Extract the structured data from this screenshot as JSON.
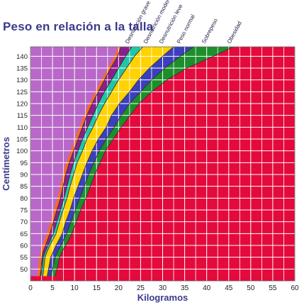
{
  "chart_data": {
    "type": "area",
    "title": "Peso en relación a la talla",
    "xlabel": "Kilogramos",
    "ylabel": "Centímetros",
    "xlim": [
      0,
      60
    ],
    "ylim": [
      45,
      144
    ],
    "xticks": [
      0,
      5,
      10,
      15,
      20,
      25,
      30,
      35,
      40,
      45,
      50,
      55,
      60
    ],
    "yticks": [
      50,
      55,
      60,
      65,
      70,
      75,
      80,
      85,
      90,
      95,
      100,
      105,
      110,
      115,
      120,
      125,
      130,
      135,
      140
    ],
    "grid": true,
    "heights": [
      47,
      50,
      55,
      57.5,
      60,
      65,
      70,
      75,
      80,
      85,
      90,
      95,
      100,
      105,
      110,
      115,
      120,
      125,
      130,
      135,
      140,
      144
    ],
    "series": [
      {
        "name": "Desnutrición grave",
        "color": "#ff6a1a",
        "upper_weight": [
          2.2,
          2.4,
          2.6,
          2.9,
          3.4,
          4.4,
          5.2,
          6.0,
          6.8,
          7.4,
          8.0,
          8.8,
          9.8,
          10.8,
          11.8,
          12.8,
          14.0,
          15.4,
          16.8,
          18.2,
          19.8,
          20.5
        ]
      },
      {
        "name": "Desnutrición moderada",
        "color": "#8a1f8c",
        "upper_weight": [
          2.4,
          2.6,
          2.9,
          3.4,
          4.0,
          5.2,
          6.0,
          6.8,
          7.6,
          8.3,
          9.0,
          9.8,
          10.8,
          11.8,
          13.0,
          14.2,
          15.4,
          16.8,
          18.4,
          20.0,
          21.6,
          23.0
        ]
      },
      {
        "name": "Desnutrición leve",
        "color": "#1fc7a6",
        "upper_weight": [
          2.8,
          3.0,
          3.3,
          3.8,
          4.4,
          5.8,
          6.6,
          7.4,
          8.3,
          9.0,
          9.8,
          10.6,
          11.8,
          12.8,
          14.2,
          15.4,
          16.8,
          18.4,
          20.0,
          21.8,
          23.6,
          25.5
        ]
      },
      {
        "name": "Peso normal",
        "color": "#ffd200",
        "upper_weight": [
          3.8,
          4.1,
          4.6,
          5.2,
          5.8,
          7.2,
          8.0,
          9.0,
          9.8,
          10.8,
          11.8,
          12.8,
          14.0,
          15.4,
          17.2,
          18.4,
          20.2,
          22.5,
          24.5,
          27.0,
          30.0,
          32.5
        ]
      },
      {
        "name": "Sobrepeso",
        "color": "#3b3fbf",
        "upper_weight": [
          4.6,
          5.0,
          5.6,
          6.2,
          6.9,
          8.2,
          9.2,
          10.2,
          11.2,
          12.2,
          13.2,
          14.4,
          15.6,
          17.2,
          19.0,
          20.6,
          22.5,
          25.0,
          27.5,
          30.5,
          34.0,
          37.0
        ]
      },
      {
        "name": "Obesidad",
        "color": "#1c8f2a",
        "upper_weight": [
          5.6,
          6.0,
          6.6,
          7.2,
          8.0,
          9.4,
          10.4,
          11.4,
          12.6,
          13.6,
          14.6,
          15.8,
          17.0,
          18.8,
          20.6,
          22.6,
          24.6,
          27.5,
          31.0,
          35.5,
          41.5,
          46.0
        ]
      }
    ],
    "colors": {
      "below": "#b968c9",
      "above": "#e40a3c",
      "grid": "#ffffff",
      "outline": "#333333",
      "text": "#3a3a8c"
    }
  }
}
